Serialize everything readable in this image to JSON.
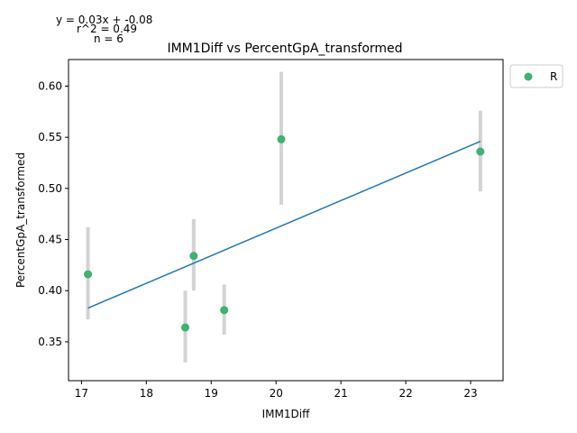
{
  "chart_data": {
    "type": "scatter",
    "title": "IMM1Diff vs PercentGpA_transformed",
    "xlabel": "IMM1Diff",
    "ylabel": "PercentGpA_transformed",
    "xlim": [
      16.8,
      23.5
    ],
    "ylim": [
      0.312,
      0.626
    ],
    "xticks": [
      17,
      18,
      19,
      20,
      21,
      22,
      23
    ],
    "yticks": [
      0.35,
      0.4,
      0.45,
      0.5,
      0.55,
      0.6
    ],
    "ytick_labels": [
      "0.35",
      "0.40",
      "0.45",
      "0.50",
      "0.55",
      "0.60"
    ],
    "grid": false,
    "legend": {
      "position": "outside-top-right",
      "entries": [
        "R"
      ]
    },
    "annotations": [
      "y = 0.03x + -0.08",
      "r^2 = 0.49",
      "n = 6"
    ],
    "series": [
      {
        "name": "R",
        "color": "#3cb371",
        "points": [
          {
            "x": 17.1,
            "y": 0.416,
            "err_low": 0.372,
            "err_high": 0.462
          },
          {
            "x": 18.6,
            "y": 0.364,
            "err_low": 0.33,
            "err_high": 0.4
          },
          {
            "x": 18.73,
            "y": 0.434,
            "err_low": 0.4,
            "err_high": 0.47
          },
          {
            "x": 19.2,
            "y": 0.381,
            "err_low": 0.357,
            "err_high": 0.406
          },
          {
            "x": 20.08,
            "y": 0.548,
            "err_low": 0.484,
            "err_high": 0.614
          },
          {
            "x": 23.15,
            "y": 0.536,
            "err_low": 0.497,
            "err_high": 0.576
          }
        ]
      }
    ],
    "fit_line": {
      "color": "#1f77b4",
      "x": [
        17.1,
        23.15
      ],
      "y": [
        0.383,
        0.546
      ]
    },
    "errorbar_color": "#d3d3d3"
  }
}
